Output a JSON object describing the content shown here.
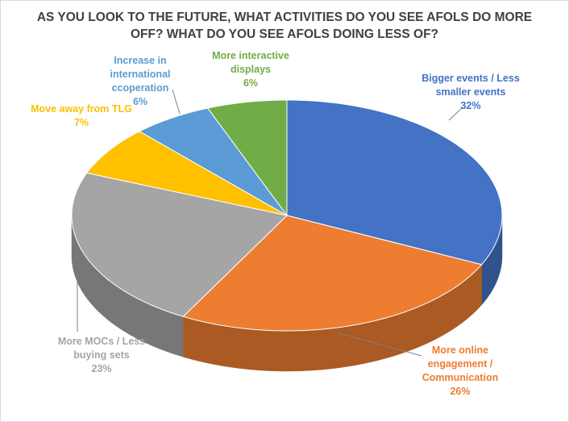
{
  "chart_data": {
    "type": "pie",
    "title": "AS YOU LOOK TO THE FUTURE, WHAT ACTIVITIES DO YOU SEE AFOLS DO MORE OFF? WHAT DO YOU SEE AFOLS DOING LESS OF?",
    "categories": [
      "Bigger events / Less smaller events",
      "More online engagement / Communication",
      "More MOCs / Less buying sets",
      "Move away from TLG",
      "Increase in international ccoperation",
      "More interactive displays"
    ],
    "values": [
      32,
      26,
      23,
      7,
      6,
      6
    ],
    "value_labels": [
      "32%",
      "26%",
      "23%",
      "7%",
      "6%",
      "6%"
    ],
    "colors": [
      "#4472c4",
      "#ed7d31",
      "#a5a5a5",
      "#ffc000",
      "#5b9bd5",
      "#70ad47"
    ]
  }
}
